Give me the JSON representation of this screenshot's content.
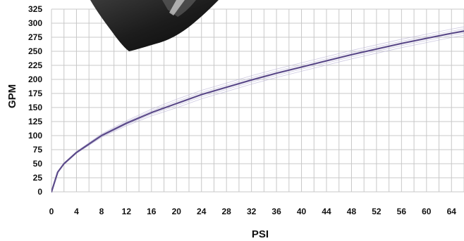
{
  "chart_data": {
    "type": "line",
    "title": "",
    "xlabel": "PSI",
    "ylabel": "GPM",
    "xlim": [
      0,
      66
    ],
    "ylim": [
      0,
      325
    ],
    "x_ticks": [
      "0",
      "4",
      "8",
      "12",
      "16",
      "20",
      "24",
      "28",
      "32",
      "36",
      "40",
      "44",
      "48",
      "52",
      "56",
      "60",
      "64"
    ],
    "y_ticks": [
      "0",
      "25",
      "50",
      "75",
      "100",
      "125",
      "150",
      "175",
      "200",
      "225",
      "250",
      "275",
      "300",
      "325"
    ],
    "grid": true,
    "legend": "none",
    "series": [
      {
        "color": "#5b4a8a",
        "x": [
          0,
          1,
          2,
          4,
          8,
          12,
          16,
          20,
          24,
          28,
          32,
          36,
          40,
          44,
          48,
          52,
          56,
          60,
          64,
          66
        ],
        "y": [
          0,
          35,
          50,
          70,
          100,
          122,
          141,
          157,
          173,
          186,
          199,
          211,
          222,
          233,
          244,
          254,
          264,
          273,
          282,
          286
        ]
      }
    ],
    "band_color": "#b9b3d6",
    "decorative_image": "black-nozzle-photo"
  }
}
